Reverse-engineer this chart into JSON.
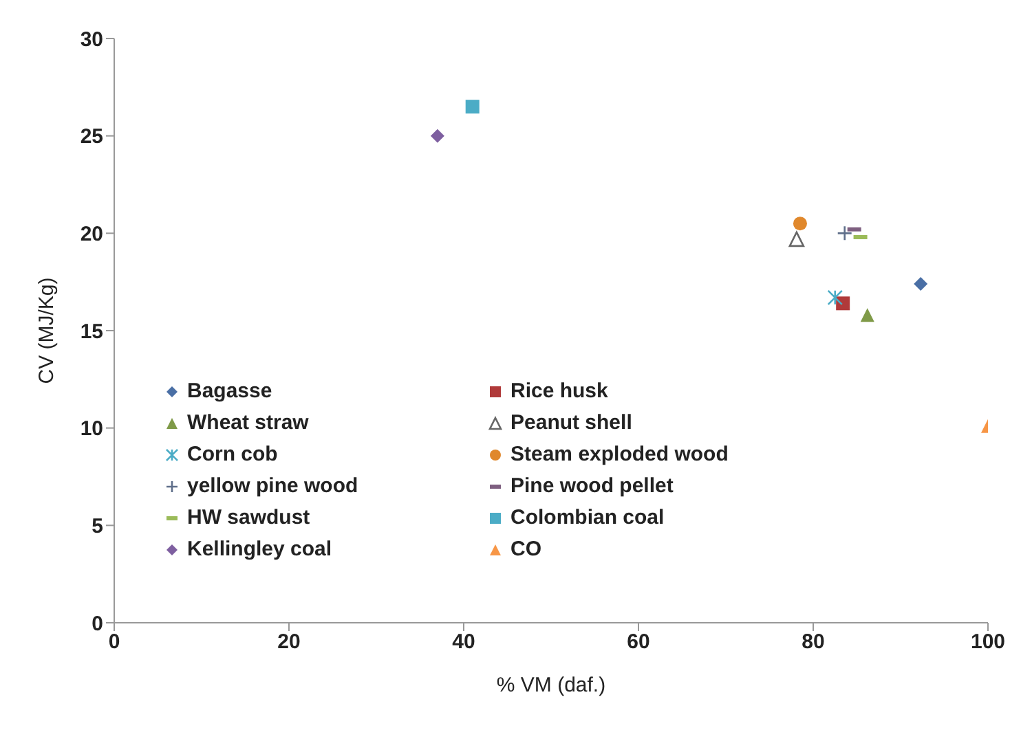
{
  "chart_data": {
    "type": "scatter",
    "xlabel": "% VM (daf.)",
    "ylabel": "CV (MJ/Kg)",
    "xlim": [
      0,
      100
    ],
    "xticks": [
      0,
      20,
      40,
      60,
      80,
      100
    ],
    "ylim": [
      0,
      30
    ],
    "yticks": [
      0,
      5,
      10,
      15,
      20,
      25,
      30
    ],
    "grid": false,
    "legend": "bottom left",
    "series": [
      {
        "name": "Bagasse",
        "color": "#4a6fa5",
        "marker": "diamond",
        "x": [
          92.3
        ],
        "values": [
          17.4
        ]
      },
      {
        "name": "Rice husk",
        "color": "#b03a3a",
        "marker": "square",
        "x": [
          83.4
        ],
        "values": [
          16.4
        ]
      },
      {
        "name": "Wheat straw",
        "color": "#7f9a48",
        "marker": "triangle",
        "x": [
          86.2
        ],
        "values": [
          15.8
        ]
      },
      {
        "name": "Peanut shell",
        "color": "#666666",
        "marker": "triangle-open",
        "x": [
          78.1
        ],
        "values": [
          19.7
        ]
      },
      {
        "name": "Corn cob",
        "color": "#4bacc6",
        "marker": "cross",
        "x": [
          82.5
        ],
        "values": [
          16.7
        ]
      },
      {
        "name": "Steam exploded wood",
        "color": "#e0882c",
        "marker": "circle",
        "x": [
          78.5
        ],
        "values": [
          20.5
        ]
      },
      {
        "name": "yellow pine wood",
        "color": "#5f6f8a",
        "marker": "cross",
        "x": [
          83.6
        ],
        "values": [
          20.0
        ]
      },
      {
        "name": "Pine wood pellet",
        "color": "#7e5f80",
        "x": [
          84.7
        ],
        "values": [
          20.2
        ]
      },
      {
        "name": "HW sawdust",
        "color": "#9bbb59",
        "x": [
          85.4
        ],
        "values": [
          19.8
        ]
      },
      {
        "name": "Colombian coal",
        "color": "#4bacc6",
        "marker": "square",
        "x": [
          41.0
        ],
        "values": [
          26.5
        ]
      },
      {
        "name": "Kellingley coal",
        "color": "#7e5fa0",
        "marker": "diamond",
        "x": [
          37.0
        ],
        "values": [
          25.0
        ]
      },
      {
        "name": "CO",
        "color": "#f79646",
        "marker": "triangle",
        "x": [
          100
        ],
        "values": [
          10.1
        ]
      }
    ]
  }
}
